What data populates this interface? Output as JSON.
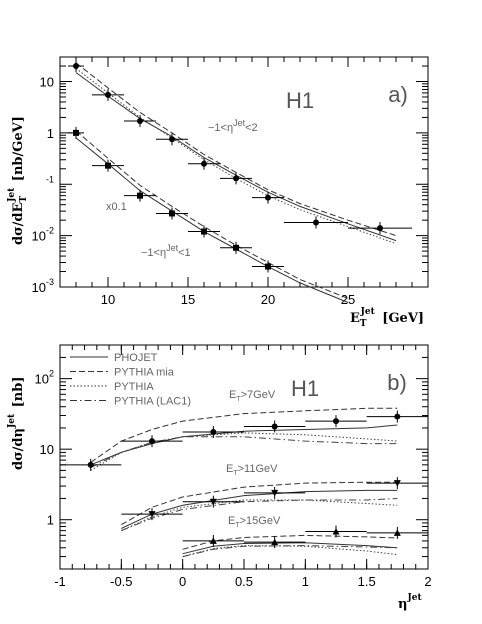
{
  "chart_data": [
    {
      "type": "line",
      "panel_label": "a)",
      "experiment": "H1",
      "xlabel_main": "E",
      "xlabel_sub": "T",
      "xlabel_sup": "Jet",
      "xlabel_unit": "[GeV]",
      "ylabel": "dσ/dE",
      "ylabel_sub": "T",
      "ylabel_sup": "Jet",
      "ylabel_unit": "[nb/GeV]",
      "x_scale": "linear",
      "y_scale": "log",
      "xlim": [
        7,
        30
      ],
      "ylim": [
        0.001,
        30
      ],
      "x_ticks": [
        "10",
        "15",
        "20",
        "25"
      ],
      "y_ticks": [
        {
          "base": "10",
          "exp": "",
          "label": "10"
        },
        {
          "base": "1",
          "exp": "",
          "label": "1"
        },
        {
          "base": "",
          "exp": "-1",
          "label": "-1"
        },
        {
          "base": "10",
          "exp": "-2",
          "label": "-2"
        },
        {
          "base": "10",
          "exp": "-3",
          "label": "-3"
        }
      ],
      "annotations": [
        "−1<η^Jet<2",
        "x0.1",
        "−1<η^Jet<1"
      ],
      "series": [
        {
          "label": "−1<η^Jet<2",
          "marker": "circle",
          "x": [
            8,
            10,
            12,
            14,
            16,
            18,
            20,
            23,
            27
          ],
          "y": [
            20,
            5.5,
            1.7,
            0.75,
            0.25,
            0.13,
            0.055,
            0.018,
            0.014
          ],
          "xerr": [
            0.5,
            1,
            1,
            1,
            1,
            1,
            1,
            2,
            2
          ]
        },
        {
          "label": "−1<η^Jet<1 x0.1",
          "marker": "square",
          "x": [
            8,
            10,
            12,
            14,
            16,
            18,
            20,
            23,
            27
          ],
          "y": [
            1.0,
            0.23,
            0.06,
            0.027,
            0.012,
            0.0058,
            0.0025,
            null,
            null
          ],
          "xerr": [
            0.5,
            1,
            1,
            1,
            1,
            1,
            1,
            2,
            2
          ]
        }
      ],
      "curves": [
        {
          "style": "solid",
          "set": 1,
          "x": [
            8,
            10,
            12,
            14,
            16,
            18,
            20,
            22,
            25,
            28
          ],
          "y": [
            15,
            5.2,
            1.9,
            0.85,
            0.33,
            0.15,
            0.07,
            0.037,
            0.017,
            0.008
          ]
        },
        {
          "style": "dashed",
          "set": 1,
          "x": [
            8,
            10,
            12,
            14,
            16,
            18,
            20,
            22,
            25,
            28
          ],
          "y": [
            23,
            7.5,
            2.5,
            1.0,
            0.38,
            0.17,
            0.078,
            0.042,
            0.02,
            0.01
          ]
        },
        {
          "style": "dotted",
          "set": 1,
          "x": [
            8,
            10,
            12,
            14,
            16,
            18,
            20,
            22,
            25,
            28
          ],
          "y": [
            18,
            6.0,
            2.0,
            0.8,
            0.3,
            0.13,
            0.06,
            0.032,
            0.015,
            0.007
          ]
        },
        {
          "style": "solid",
          "set": 2,
          "x": [
            8,
            10,
            12,
            14,
            16,
            18,
            20,
            22,
            25
          ],
          "y": [
            0.8,
            0.25,
            0.075,
            0.03,
            0.012,
            0.0055,
            0.0025,
            0.0012,
            0.0005
          ]
        },
        {
          "style": "dashed",
          "set": 2,
          "x": [
            8,
            10,
            12,
            14,
            16,
            18,
            20,
            22,
            25
          ],
          "y": [
            1.1,
            0.32,
            0.095,
            0.037,
            0.015,
            0.0065,
            0.003,
            0.0014,
            0.0006
          ]
        }
      ]
    },
    {
      "type": "line",
      "panel_label": "b)",
      "experiment": "H1",
      "xlabel_main": "η",
      "xlabel_sup": "Jet",
      "ylabel": "dσ/dη",
      "ylabel_sup": "Jet",
      "ylabel_unit": "[nb]",
      "x_scale": "linear",
      "y_scale": "log",
      "xlim": [
        -1,
        2
      ],
      "ylim": [
        0.2,
        300
      ],
      "x_ticks": [
        "-1",
        "-0.5",
        "0",
        "0.5",
        "1",
        "1.5",
        "2"
      ],
      "y_ticks": [
        {
          "base": "10",
          "exp": "2",
          "label": "2"
        },
        {
          "base": "10",
          "exp": "",
          "label": "10"
        },
        {
          "base": "1",
          "exp": "",
          "label": "1"
        }
      ],
      "legend": [
        "PHOJET",
        "PYTHIA mia",
        "PYTHIA",
        "PYTHIA (LAC1)"
      ],
      "legend_placement": "top-left",
      "annotations": [
        "E_T>7GeV",
        "E_T>11GeV",
        "E_T>15GeV"
      ],
      "series": [
        {
          "label": "E_T>7GeV",
          "marker": "circle",
          "x": [
            -0.75,
            -0.25,
            0.25,
            0.75,
            1.25,
            1.75
          ],
          "y": [
            6,
            13,
            17.5,
            21,
            25,
            29
          ],
          "xerr": 0.25
        },
        {
          "label": "E_T>11GeV",
          "marker": "triangle-down",
          "x": [
            -0.25,
            0.25,
            0.75,
            1.75
          ],
          "y": [
            1.2,
            1.8,
            2.4,
            3.3
          ],
          "xerr": 0.25
        },
        {
          "label": "E_T>15GeV",
          "marker": "triangle-up",
          "x": [
            0.25,
            0.75,
            1.25,
            1.75
          ],
          "y": [
            0.5,
            0.48,
            0.68,
            0.65
          ],
          "xerr": 0.25
        }
      ],
      "curves": [
        {
          "style": "solid",
          "set": 1,
          "x": [
            -0.75,
            -0.5,
            -0.25,
            0,
            0.5,
            1,
            1.5,
            1.75
          ],
          "y": [
            6,
            9,
            12,
            15,
            18,
            19,
            20,
            22
          ]
        },
        {
          "style": "dashed",
          "set": 1,
          "x": [
            -0.75,
            -0.5,
            -0.25,
            0,
            0.5,
            1,
            1.5,
            1.75
          ],
          "y": [
            6.5,
            13,
            19,
            25,
            32,
            35,
            38,
            38
          ]
        },
        {
          "style": "dotted",
          "set": 1,
          "x": [
            -0.75,
            -0.5,
            -0.25,
            0,
            0.5,
            1,
            1.5,
            1.75
          ],
          "y": [
            5,
            9,
            12.5,
            15,
            17,
            16,
            14,
            13
          ]
        },
        {
          "style": "dashdot",
          "set": 1,
          "x": [
            -0.75,
            -0.5,
            -0.25,
            0,
            0.5,
            1,
            1.5,
            1.75
          ],
          "y": [
            5.5,
            9,
            12.5,
            15,
            15,
            13,
            12,
            12
          ]
        },
        {
          "style": "solid",
          "set": 2,
          "x": [
            -0.5,
            -0.25,
            0,
            0.5,
            1,
            1.5,
            1.75
          ],
          "y": [
            0.75,
            1.2,
            1.6,
            2.2,
            2.5,
            2.6,
            2.6
          ]
        },
        {
          "style": "dashed",
          "set": 2,
          "x": [
            -0.5,
            -0.25,
            0,
            0.5,
            1,
            1.5,
            1.75
          ],
          "y": [
            0.85,
            1.5,
            2.1,
            2.9,
            3.3,
            3.4,
            3.4
          ]
        },
        {
          "style": "dotted",
          "set": 2,
          "x": [
            -0.5,
            -0.25,
            0,
            0.5,
            1,
            1.5,
            1.75
          ],
          "y": [
            0.7,
            1.1,
            1.5,
            1.9,
            1.9,
            1.7,
            1.6
          ]
        },
        {
          "style": "dashdot",
          "set": 2,
          "x": [
            -0.5,
            -0.25,
            0,
            0.5,
            1,
            1.5,
            1.75
          ],
          "y": [
            0.7,
            1.05,
            1.4,
            1.8,
            1.9,
            1.9,
            2.0
          ]
        },
        {
          "style": "solid",
          "set": 3,
          "x": [
            0,
            0.25,
            0.5,
            1,
            1.5,
            1.75
          ],
          "y": [
            0.33,
            0.42,
            0.46,
            0.47,
            0.43,
            0.4
          ]
        },
        {
          "style": "dashed",
          "set": 3,
          "x": [
            0,
            0.25,
            0.5,
            1,
            1.5,
            1.75
          ],
          "y": [
            0.38,
            0.5,
            0.56,
            0.6,
            0.57,
            0.55
          ]
        },
        {
          "style": "dotted",
          "set": 3,
          "x": [
            0,
            0.25,
            0.5,
            1,
            1.5,
            1.75
          ],
          "y": [
            0.3,
            0.39,
            0.43,
            0.42,
            0.36,
            0.32
          ]
        },
        {
          "style": "dashdot",
          "set": 3,
          "x": [
            0,
            0.25,
            0.5,
            1,
            1.5,
            1.75
          ],
          "y": [
            0.3,
            0.38,
            0.42,
            0.43,
            0.41,
            0.4
          ]
        }
      ]
    }
  ]
}
